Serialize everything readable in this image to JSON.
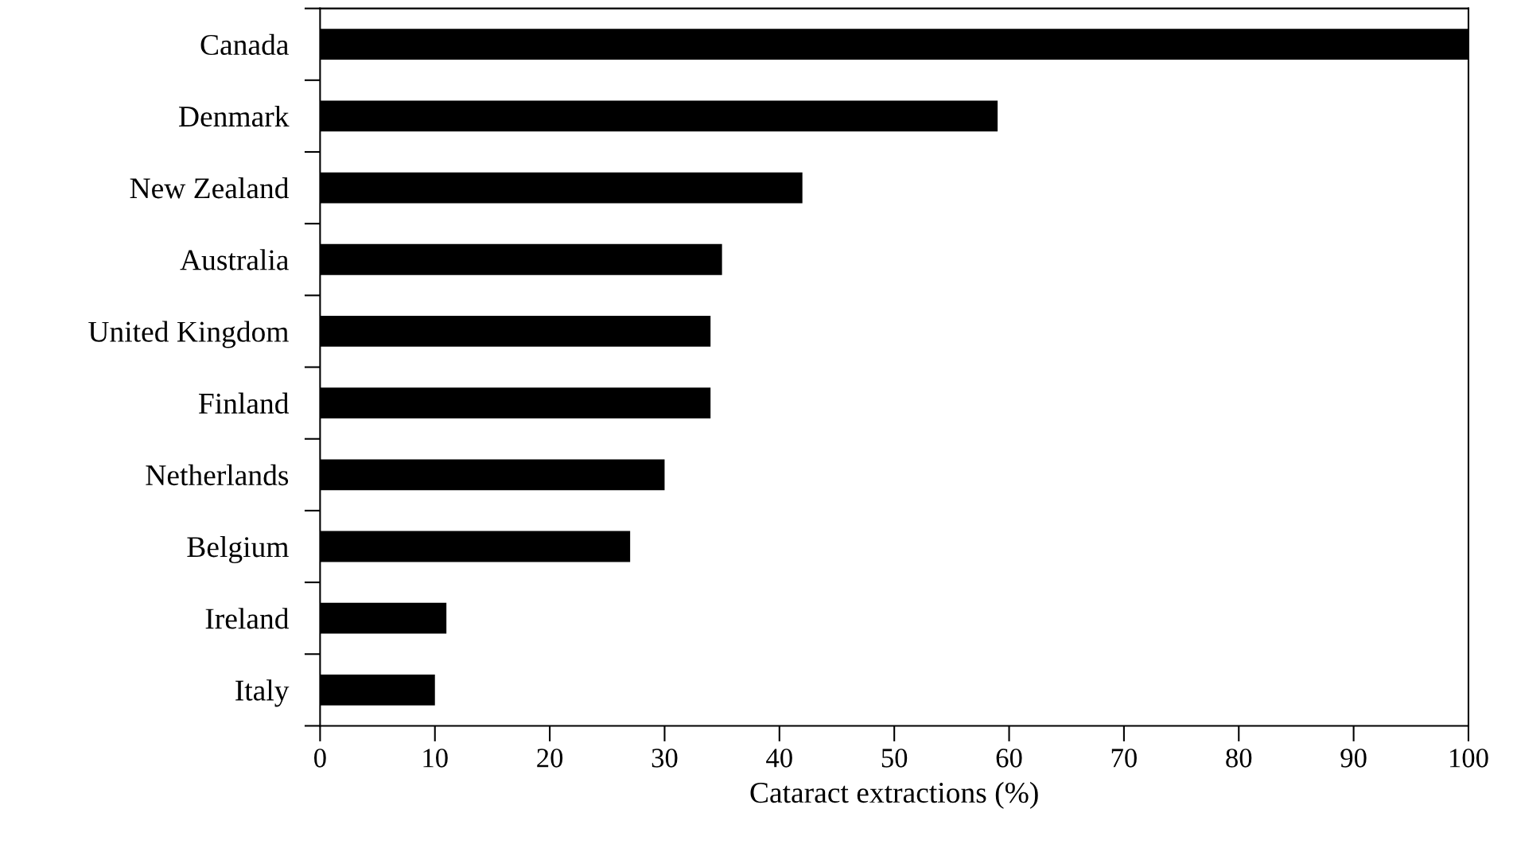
{
  "chart_data": {
    "type": "bar",
    "orientation": "horizontal",
    "xlabel": "Cataract extractions (%)",
    "categories": [
      "Canada",
      "Denmark",
      "New Zealand",
      "Australia",
      "United Kingdom",
      "Finland",
      "Netherlands",
      "Belgium",
      "Ireland",
      "Italy"
    ],
    "values": [
      100,
      59,
      42,
      35,
      34,
      34,
      30,
      27,
      11,
      10
    ],
    "color": "#000000",
    "xlim": [
      0,
      100
    ],
    "xticks": [
      0,
      10,
      20,
      30,
      40,
      50,
      60,
      70,
      80,
      90,
      100
    ],
    "grid": false,
    "legend": false
  }
}
